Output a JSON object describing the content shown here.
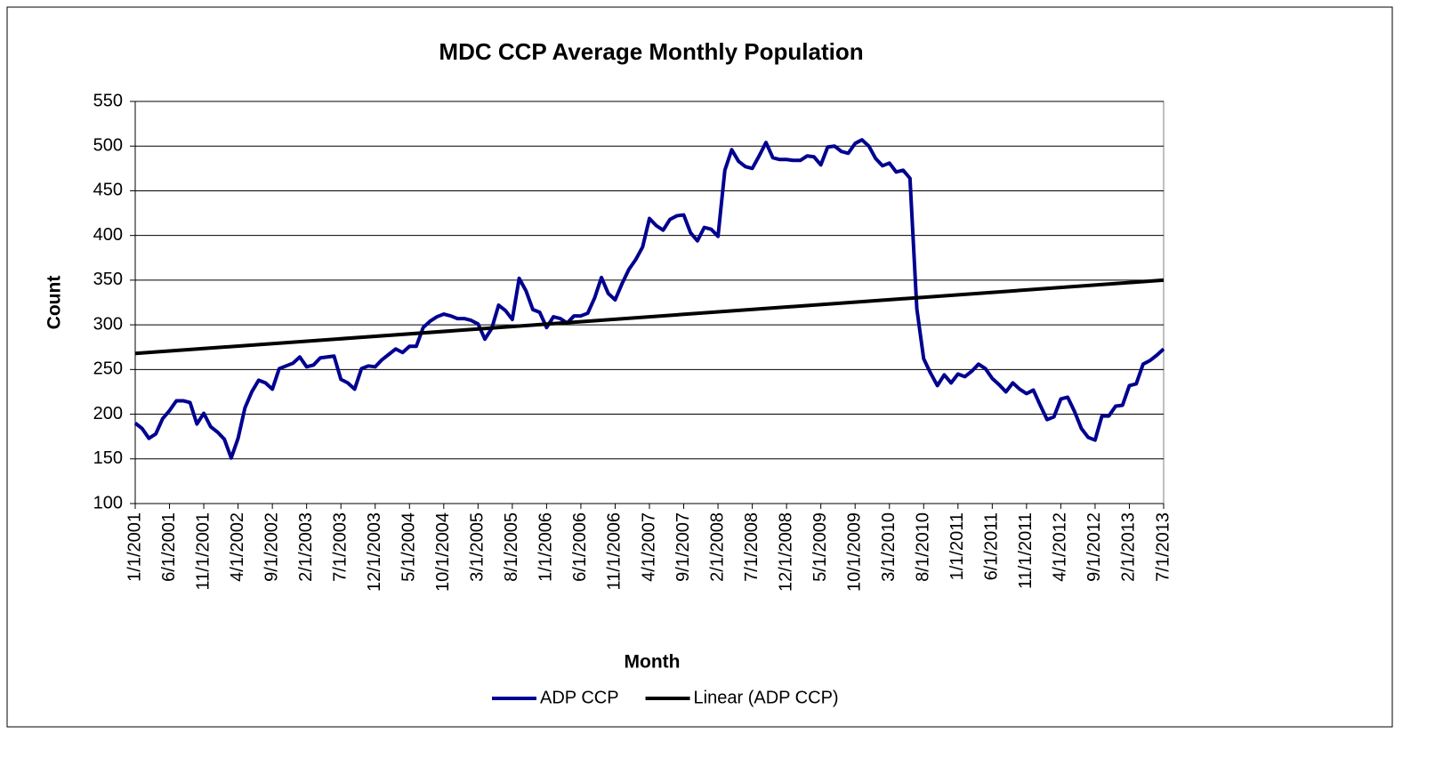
{
  "chart_data": {
    "type": "line",
    "title": "MDC CCP Average Monthly Population",
    "x_label": "Month",
    "y_label": "Count",
    "ylim": [
      100,
      550
    ],
    "yticks": [
      100,
      150,
      200,
      250,
      300,
      350,
      400,
      450,
      500,
      550
    ],
    "grid": true,
    "legend": "bottom",
    "categories": [
      "1/1/2001",
      null,
      null,
      null,
      null,
      "6/1/2001",
      null,
      null,
      null,
      null,
      "11/1/2001",
      null,
      null,
      null,
      null,
      "4/1/2002",
      null,
      null,
      null,
      null,
      "9/1/2002",
      null,
      null,
      null,
      null,
      "2/1/2003",
      null,
      null,
      null,
      null,
      "7/1/2003",
      null,
      null,
      null,
      null,
      "12/1/2003",
      null,
      null,
      null,
      null,
      "5/1/2004",
      null,
      null,
      null,
      null,
      "10/1/2004",
      null,
      null,
      null,
      null,
      "3/1/2005",
      null,
      null,
      null,
      null,
      "8/1/2005",
      null,
      null,
      null,
      null,
      "1/1/2006",
      null,
      null,
      null,
      null,
      "6/1/2006",
      null,
      null,
      null,
      null,
      "11/1/2006",
      null,
      null,
      null,
      null,
      "4/1/2007",
      null,
      null,
      null,
      null,
      "9/1/2007",
      null,
      null,
      null,
      null,
      "2/1/2008",
      null,
      null,
      null,
      null,
      "7/1/2008",
      null,
      null,
      null,
      null,
      "12/1/2008",
      null,
      null,
      null,
      null,
      "5/1/2009",
      null,
      null,
      null,
      null,
      "10/1/2009",
      null,
      null,
      null,
      null,
      "3/1/2010",
      null,
      null,
      null,
      null,
      "8/1/2010",
      null,
      null,
      null,
      null,
      "1/1/2011",
      null,
      null,
      null,
      null,
      "6/1/2011",
      null,
      null,
      null,
      null,
      "11/1/2011",
      null,
      null,
      null,
      null,
      "4/1/2012",
      null,
      null,
      null,
      null,
      "9/1/2012",
      null,
      null,
      null,
      null,
      "2/1/2013",
      null,
      null,
      null,
      null,
      "7/1/2013"
    ],
    "series": [
      {
        "name": "ADP CCP",
        "color": "#000090",
        "values": [
          190,
          184,
          173,
          178,
          195,
          204,
          215,
          215,
          213,
          189,
          201,
          186,
          180,
          172,
          151,
          173,
          207,
          225,
          238,
          235,
          228,
          251,
          254,
          257,
          264,
          253,
          255,
          263,
          264,
          265,
          239,
          235,
          228,
          251,
          254,
          253,
          261,
          267,
          273,
          269,
          276,
          276,
          297,
          304,
          309,
          312,
          310,
          307,
          307,
          305,
          301,
          284,
          296,
          322,
          316,
          306,
          352,
          338,
          317,
          314,
          297,
          309,
          307,
          302,
          310,
          310,
          313,
          330,
          353,
          335,
          328,
          346,
          362,
          373,
          387,
          419,
          411,
          406,
          418,
          422,
          423,
          403,
          394,
          409,
          407,
          399,
          473,
          496,
          483,
          477,
          475,
          489,
          504,
          487,
          485,
          485,
          484,
          484,
          489,
          488,
          479,
          499,
          500,
          494,
          492,
          503,
          507,
          500,
          486,
          478,
          481,
          471,
          473,
          464,
          318,
          262,
          246,
          232,
          244,
          235,
          245,
          242,
          248,
          256,
          251,
          240,
          233,
          225,
          235,
          228,
          223,
          227,
          210,
          194,
          197,
          217,
          219,
          203,
          184,
          174,
          171,
          198,
          198,
          209,
          210,
          232,
          234,
          256,
          260,
          266,
          273
        ]
      }
    ],
    "trendline": {
      "name": "Linear (ADP CCP)",
      "color": "#000000",
      "values": [
        268,
        350
      ]
    }
  }
}
